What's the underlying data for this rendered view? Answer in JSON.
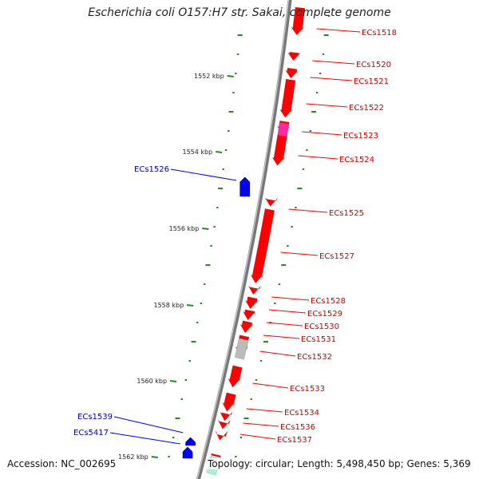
{
  "title": "Escherichia coli O157:H7 str. Sakai, complete genome",
  "accession_text": "Accession: NC_002695",
  "summary_text": "Topology: circular; Length: 5,498,450 bp; Genes: 5,369",
  "topology": "circular",
  "genome_length_bp": 5498450,
  "gene_count": 5369,
  "colors": {
    "forward_gene": "#ff0000",
    "reverse_gene": "#0000ff",
    "backbone": "#777777",
    "ticks": "#228b22",
    "special_pink": "#ff2aa0",
    "special_gray": "#bbbbbb",
    "special_cyan": "#aaf0d8"
  },
  "scale_labels": [
    {
      "text": "1552 kbp",
      "kbp": 1552
    },
    {
      "text": "1554 kbp",
      "kbp": 1554
    },
    {
      "text": "1556 kbp",
      "kbp": 1556
    },
    {
      "text": "1558 kbp",
      "kbp": 1558
    },
    {
      "text": "1560 kbp",
      "kbp": 1560
    },
    {
      "text": "1562 kbp",
      "kbp": 1562
    }
  ],
  "gene_labels": [
    {
      "name": "ECs1518",
      "strand": "forward"
    },
    {
      "name": "ECs1520",
      "strand": "forward"
    },
    {
      "name": "ECs1521",
      "strand": "forward"
    },
    {
      "name": "ECs1522",
      "strand": "forward"
    },
    {
      "name": "ECs1523",
      "strand": "forward"
    },
    {
      "name": "ECs1524",
      "strand": "forward"
    },
    {
      "name": "ECs1525",
      "strand": "forward"
    },
    {
      "name": "ECs1527",
      "strand": "forward"
    },
    {
      "name": "ECs1528",
      "strand": "forward"
    },
    {
      "name": "ECs1529",
      "strand": "forward"
    },
    {
      "name": "ECs1530",
      "strand": "forward"
    },
    {
      "name": "ECs1531",
      "strand": "forward"
    },
    {
      "name": "ECs1532",
      "strand": "forward"
    },
    {
      "name": "ECs1533",
      "strand": "forward"
    },
    {
      "name": "ECs1534",
      "strand": "forward"
    },
    {
      "name": "ECs1536",
      "strand": "forward"
    },
    {
      "name": "ECs1537",
      "strand": "forward"
    },
    {
      "name": "ECs1526",
      "strand": "reverse"
    },
    {
      "name": "ECs1539",
      "strand": "reverse"
    },
    {
      "name": "ECs5417",
      "strand": "reverse"
    }
  ]
}
